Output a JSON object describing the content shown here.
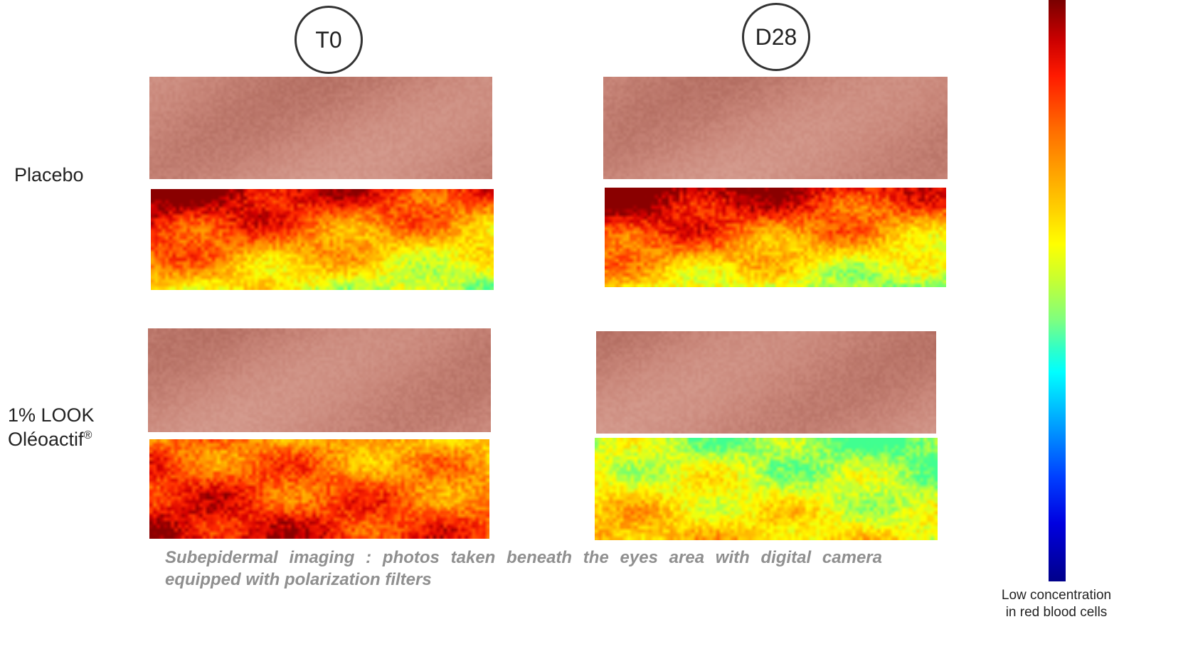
{
  "timepoints": {
    "t0": "T0",
    "d28": "D28"
  },
  "rows": {
    "placebo": {
      "label": "Placebo"
    },
    "look": {
      "label_line1": "1% LOOK",
      "label_line2": "Oléoactif",
      "label_sup": "®"
    }
  },
  "caption": "Subepidermal imaging : photos taken beneath the eyes area with digital camera equipped with polarization filters",
  "colorbar": {
    "label_line1": "Low concentration",
    "label_line2": "in red blood cells",
    "colors": [
      "#7a0000",
      "#cc0000",
      "#ff1a00",
      "#ff6a00",
      "#ffa500",
      "#ffff00",
      "#7fff7f",
      "#00ffff",
      "#0080ff",
      "#0000e0",
      "#00008a"
    ]
  },
  "heatmaps": {
    "placebo_t0": {
      "redness": [
        0.9,
        0.25
      ]
    },
    "placebo_d28": {
      "redness": [
        0.95,
        0.22
      ]
    },
    "look_t0": {
      "redness": [
        0.55,
        0.85
      ]
    },
    "look_d28": {
      "redness": [
        0.1,
        0.45
      ]
    }
  },
  "skin_colors": {
    "base": "#c9877a",
    "dark": "#b06a5e",
    "light": "#d79f92"
  }
}
